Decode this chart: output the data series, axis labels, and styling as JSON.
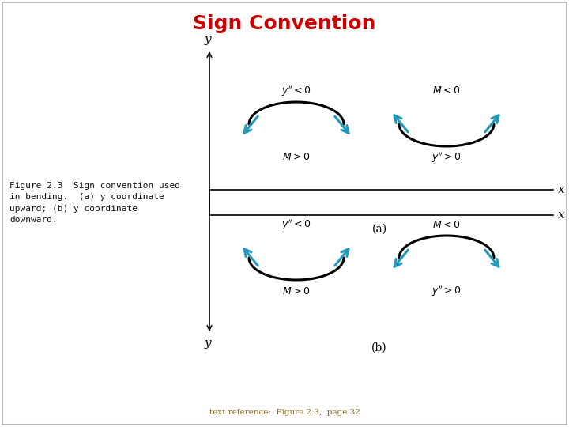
{
  "title": "Sign Convention",
  "title_color": "#cc0000",
  "title_fontsize": 18,
  "caption": "Figure 2.3  Sign convention used\nin bending.  (a) y coordinate\nupward; (b) y coordinate\ndownward.",
  "bottom_ref": "text reference:  Figure 2.3,  page 32",
  "bottom_ref_color": "#8B6914",
  "arrow_color": "#2299BB",
  "curve_color": "#000000",
  "label_a": "(a)",
  "label_b": "(b)",
  "fig_bg": "#ffffff",
  "border_color": "#bbbbbb"
}
